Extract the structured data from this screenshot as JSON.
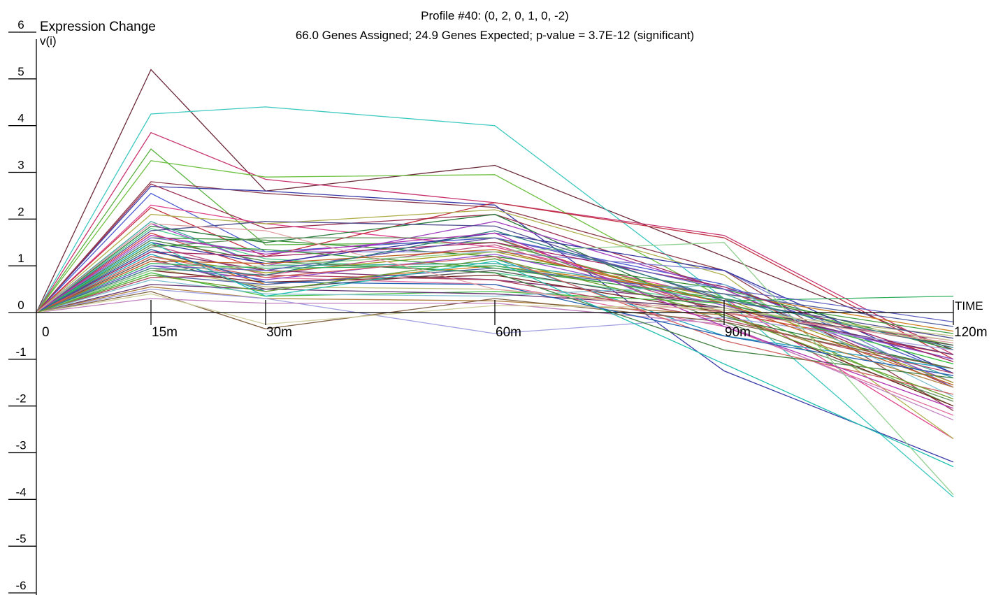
{
  "chart_data": {
    "type": "line",
    "title": "Profile #40: (0, 2, 0, 1, 0, -2)",
    "subtitle": "66.0 Genes Assigned; 24.9 Genes Expected; p-value = 3.7E-12 (significant)",
    "ylabel": "Expression Change",
    "ylabel_sub": "v(i)",
    "xlabel": "TIME",
    "ylim": [
      -6,
      6
    ],
    "y_ticks": [
      6,
      5,
      4,
      3,
      2,
      1,
      0,
      -1,
      -2,
      -3,
      -4,
      -5,
      -6
    ],
    "x": [
      0,
      15,
      30,
      60,
      90,
      120
    ],
    "x_tick_labels": [
      "0",
      "15m",
      "30m",
      "60m",
      "90m",
      "120m"
    ],
    "grid": false,
    "series": [
      {
        "color": "#6b2a3a",
        "values": [
          0,
          5.2,
          2.6,
          3.15,
          1.2,
          -0.8
        ]
      },
      {
        "color": "#3cc8c0",
        "values": [
          0,
          4.25,
          4.4,
          4.0,
          0.3,
          -3.95
        ]
      },
      {
        "color": "#c8326e",
        "values": [
          0,
          3.85,
          2.85,
          2.35,
          1.65,
          -0.9
        ]
      },
      {
        "color": "#5ab040",
        "values": [
          0,
          3.5,
          1.45,
          1.5,
          0.2,
          -2.0
        ]
      },
      {
        "color": "#6ec040",
        "values": [
          0,
          3.25,
          2.9,
          2.95,
          0.3,
          -0.7
        ]
      },
      {
        "color": "#8a3a4a",
        "values": [
          0,
          2.8,
          2.55,
          2.25,
          0.9,
          -2.1
        ]
      },
      {
        "color": "#3a3aa8",
        "values": [
          0,
          2.7,
          2.6,
          2.3,
          -1.25,
          -3.2
        ]
      },
      {
        "color": "#4a5ad0",
        "values": [
          0,
          2.55,
          1.3,
          1.6,
          0.6,
          -1.3
        ]
      },
      {
        "color": "#9a3050",
        "values": [
          0,
          2.75,
          1.8,
          2.1,
          0.5,
          -1.6
        ]
      },
      {
        "color": "#e0408a",
        "values": [
          0,
          2.3,
          1.9,
          1.4,
          0.3,
          -2.7
        ]
      },
      {
        "color": "#c03040",
        "values": [
          0,
          2.25,
          1.2,
          2.35,
          1.6,
          -1.0
        ]
      },
      {
        "color": "#b0b050",
        "values": [
          0,
          2.1,
          1.9,
          2.2,
          0.8,
          -2.7
        ]
      },
      {
        "color": "#40a8a0",
        "values": [
          0,
          1.95,
          1.0,
          1.05,
          0.4,
          -1.4
        ]
      },
      {
        "color": "#2a7a3a",
        "values": [
          0,
          1.85,
          1.5,
          2.1,
          -0.1,
          -1.2
        ]
      },
      {
        "color": "#2a8a2a",
        "values": [
          0,
          1.6,
          1.55,
          1.2,
          0.5,
          -0.8
        ]
      },
      {
        "color": "#a040c0",
        "values": [
          0,
          1.9,
          1.0,
          1.95,
          0.5,
          -1.5
        ]
      },
      {
        "color": "#50d090",
        "values": [
          0,
          1.8,
          1.15,
          0.85,
          0.2,
          -1.1
        ]
      },
      {
        "color": "#d04040",
        "values": [
          0,
          1.7,
          0.9,
          1.6,
          0.0,
          -0.9
        ]
      },
      {
        "color": "#8080d0",
        "values": [
          0,
          1.6,
          1.3,
          1.3,
          0.9,
          -1.6
        ]
      },
      {
        "color": "#3030a0",
        "values": [
          0,
          1.5,
          1.05,
          1.7,
          0.9,
          -1.3
        ]
      },
      {
        "color": "#c05080",
        "values": [
          0,
          1.45,
          0.8,
          1.45,
          0.0,
          -0.6
        ]
      },
      {
        "color": "#609060",
        "values": [
          0,
          1.4,
          1.6,
          1.6,
          -0.2,
          -1.9
        ]
      },
      {
        "color": "#d08020",
        "values": [
          0,
          1.35,
          0.6,
          1.0,
          0.4,
          -0.4
        ]
      },
      {
        "color": "#7a2a6a",
        "values": [
          0,
          1.3,
          0.9,
          0.7,
          0.2,
          -1.0
        ]
      },
      {
        "color": "#20a0c0",
        "values": [
          0,
          1.25,
          0.45,
          1.15,
          -0.5,
          -1.2
        ]
      },
      {
        "color": "#a0a020",
        "values": [
          0,
          1.2,
          0.85,
          1.3,
          0.3,
          -1.5
        ]
      },
      {
        "color": "#505050",
        "values": [
          0,
          1.15,
          0.5,
          0.9,
          0.1,
          -0.7
        ]
      },
      {
        "color": "#e070a0",
        "values": [
          0,
          1.1,
          0.75,
          0.6,
          -0.3,
          -2.2
        ]
      },
      {
        "color": "#30b060",
        "values": [
          0,
          1.05,
          0.95,
          1.0,
          0.25,
          0.35
        ]
      },
      {
        "color": "#9050d0",
        "values": [
          0,
          1.0,
          0.7,
          1.25,
          0.15,
          -1.0
        ]
      },
      {
        "color": "#c0c080",
        "values": [
          0,
          0.95,
          0.55,
          0.5,
          0.05,
          -0.5
        ]
      },
      {
        "color": "#702020",
        "values": [
          0,
          0.9,
          0.65,
          0.8,
          0.0,
          -2.0
        ]
      },
      {
        "color": "#40c040",
        "values": [
          0,
          0.85,
          0.35,
          0.45,
          0.2,
          -1.1
        ]
      },
      {
        "color": "#5060a0",
        "values": [
          0,
          0.8,
          0.6,
          0.95,
          0.4,
          -0.3
        ]
      },
      {
        "color": "#b04060",
        "values": [
          0,
          0.75,
          0.8,
          0.7,
          -0.15,
          -1.3
        ]
      },
      {
        "color": "#80c0d0",
        "values": [
          0,
          0.7,
          0.4,
          0.35,
          0.6,
          -1.8
        ]
      },
      {
        "color": "#603070",
        "values": [
          0,
          0.6,
          0.5,
          0.4,
          0.1,
          -0.9
        ]
      },
      {
        "color": "#b08040",
        "values": [
          0,
          0.55,
          0.3,
          0.25,
          -0.05,
          -1.6
        ]
      },
      {
        "color": "#a0a0e0",
        "values": [
          0,
          0.5,
          0.3,
          -0.45,
          -0.1,
          -0.8
        ]
      },
      {
        "color": "#806040",
        "values": [
          0,
          0.45,
          -0.35,
          0.3,
          -0.2,
          -1.2
        ]
      },
      {
        "color": "#c080c0",
        "values": [
          0,
          0.3,
          0.2,
          0.2,
          -0.25,
          -2.3
        ]
      },
      {
        "color": "#d0d0a0",
        "values": [
          0,
          0.4,
          -0.25,
          0.15,
          0.1,
          -0.6
        ]
      },
      {
        "color": "#408040",
        "values": [
          0,
          1.55,
          1.1,
          0.85,
          -0.8,
          -1.4
        ]
      },
      {
        "color": "#20c0b0",
        "values": [
          0,
          1.5,
          0.35,
          1.1,
          -1.1,
          -3.3
        ]
      },
      {
        "color": "#a02060",
        "values": [
          0,
          1.3,
          1.2,
          1.5,
          0.55,
          -1.05
        ]
      },
      {
        "color": "#6060c0",
        "values": [
          0,
          1.0,
          0.9,
          1.6,
          0.5,
          -0.2
        ]
      },
      {
        "color": "#40a040",
        "values": [
          0,
          1.45,
          1.35,
          0.95,
          0.3,
          -0.45
        ]
      },
      {
        "color": "#d06060",
        "values": [
          0,
          1.2,
          0.75,
          1.2,
          -0.6,
          -1.75
        ]
      },
      {
        "color": "#90d090",
        "values": [
          0,
          0.9,
          1.0,
          1.3,
          1.5,
          -3.9
        ]
      },
      {
        "color": "#505090",
        "values": [
          0,
          1.75,
          1.95,
          1.85,
          0.25,
          -0.55
        ]
      },
      {
        "color": "#c06020",
        "values": [
          0,
          1.1,
          1.05,
          1.35,
          0.2,
          -1.55
        ]
      },
      {
        "color": "#308080",
        "values": [
          0,
          0.95,
          0.8,
          1.75,
          0.3,
          -0.75
        ]
      },
      {
        "color": "#b030b0",
        "values": [
          0,
          1.65,
          1.25,
          1.7,
          -0.3,
          -2.05
        ]
      },
      {
        "color": "#2060b0",
        "values": [
          0,
          1.35,
          0.65,
          0.6,
          -0.5,
          -1.35
        ]
      },
      {
        "color": "#70a030",
        "values": [
          0,
          0.8,
          0.45,
          1.15,
          -0.05,
          -1.85
        ]
      },
      {
        "color": "#e0a0a0",
        "values": [
          0,
          1.9,
          1.75,
          0.5,
          0.0,
          -0.65
        ]
      }
    ]
  }
}
